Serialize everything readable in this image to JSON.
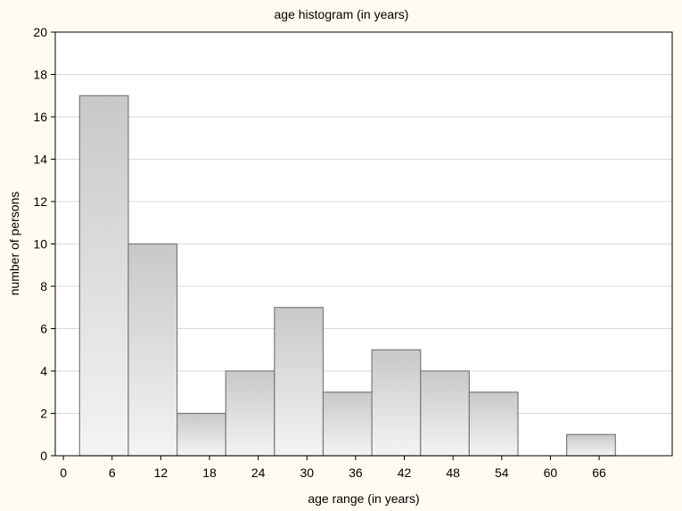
{
  "chart_data": {
    "type": "bar",
    "title": "age histogram (in years)",
    "xlabel": "age range (in years)",
    "ylabel": "number of persons",
    "bin_width": 6,
    "bins": [
      {
        "start": 2,
        "end": 8,
        "value": 17
      },
      {
        "start": 8,
        "end": 14,
        "value": 10
      },
      {
        "start": 14,
        "end": 20,
        "value": 2
      },
      {
        "start": 20,
        "end": 26,
        "value": 4
      },
      {
        "start": 26,
        "end": 32,
        "value": 7
      },
      {
        "start": 32,
        "end": 38,
        "value": 3
      },
      {
        "start": 38,
        "end": 44,
        "value": 5
      },
      {
        "start": 44,
        "end": 50,
        "value": 4
      },
      {
        "start": 50,
        "end": 56,
        "value": 3
      },
      {
        "start": 56,
        "end": 62,
        "value": 0
      },
      {
        "start": 62,
        "end": 68,
        "value": 1
      }
    ],
    "xticks": [
      0,
      6,
      12,
      18,
      24,
      30,
      36,
      42,
      48,
      54,
      60,
      66
    ],
    "yticks": [
      0,
      2,
      4,
      6,
      8,
      10,
      12,
      14,
      16,
      18,
      20
    ],
    "xlim": [
      -1,
      75
    ],
    "ylim": [
      0,
      20
    ],
    "grid": true,
    "colors": {
      "background": "#fffbf0",
      "plot_background": "#ffffff",
      "bar_top": "#c8c8c8",
      "bar_bottom": "#f4f4f4",
      "bar_edge": "#7a7a7a",
      "grid": "#d8d8d8"
    }
  }
}
